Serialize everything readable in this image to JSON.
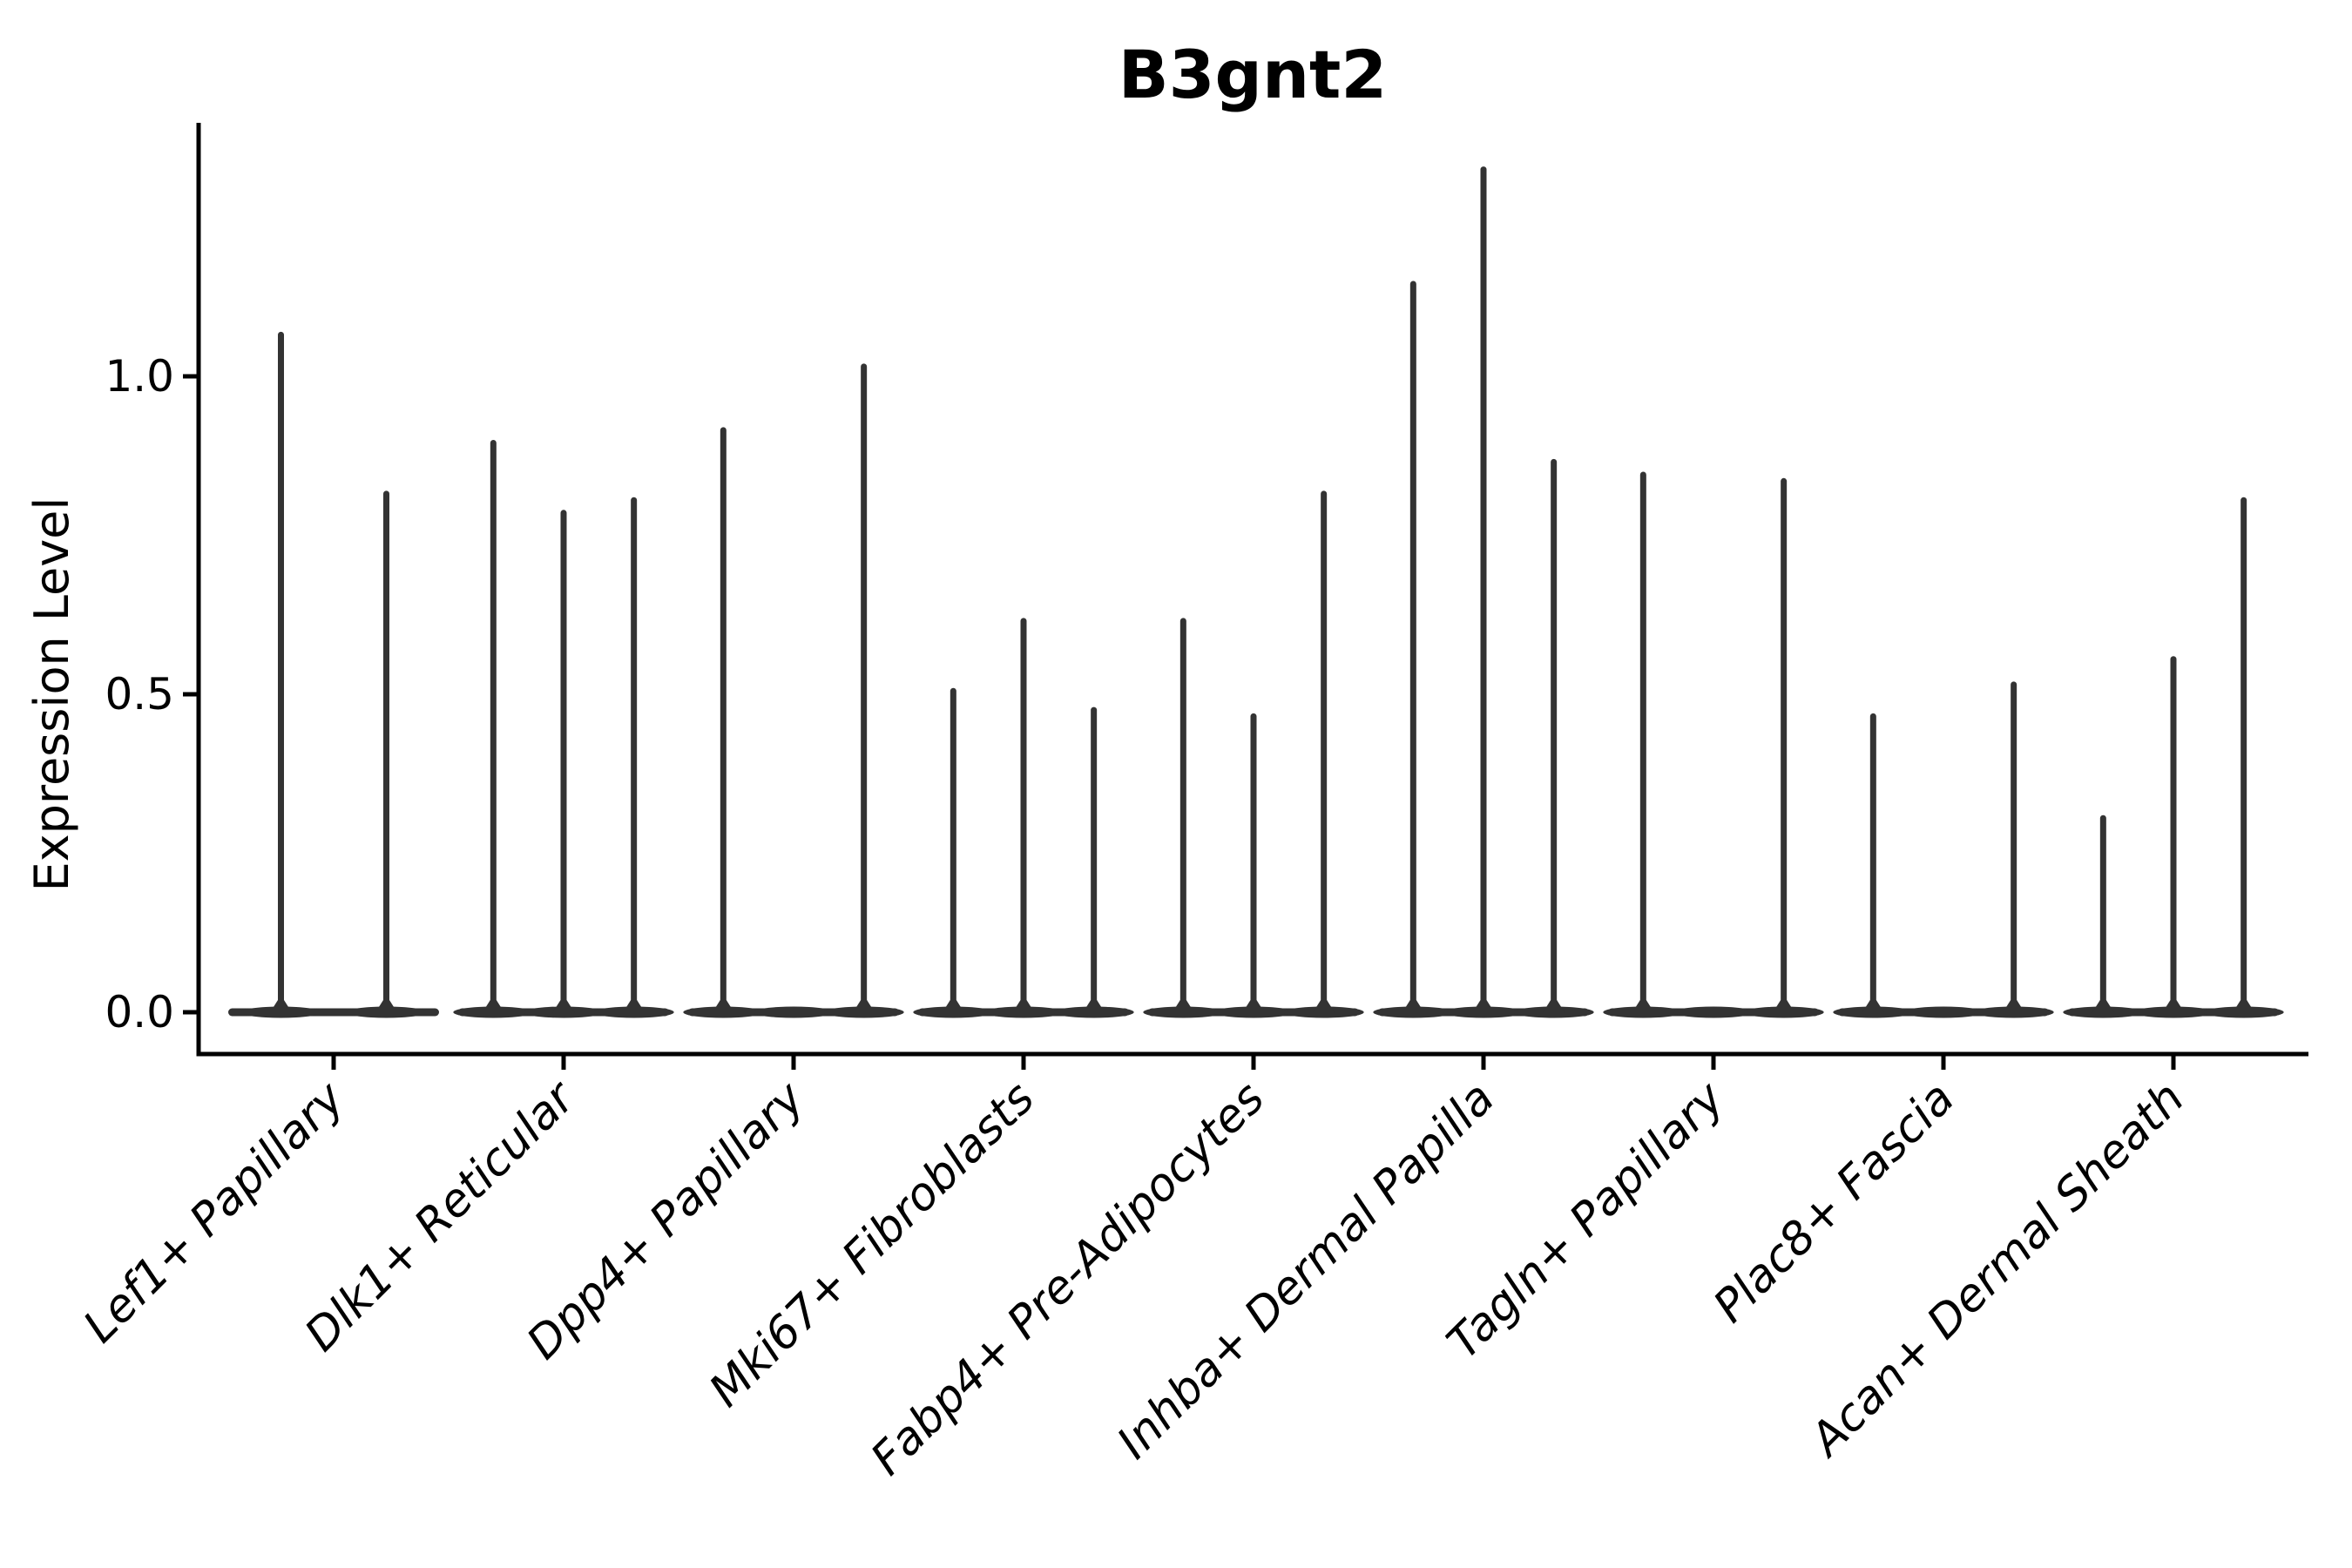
{
  "figure": {
    "background": "#ffffff"
  },
  "chart_data": {
    "type": "violin",
    "title": "B3gnt2",
    "ylabel": "Expression Level",
    "xlabel": "",
    "legend": "none",
    "grid": false,
    "ytick_labels": [
      "0.0",
      "0.5",
      "1.0"
    ],
    "ytick_values": [
      0.0,
      0.5,
      1.0
    ],
    "ylim": [
      -0.07,
      1.4
    ],
    "categories": [
      "Lef1+ Papillary",
      "Dlk1+ Reticular",
      "Dpp4+ Papillary",
      "Mki67+ Fibroblasts",
      "Fabp4+ Pre-Adipocytes",
      "Inhba+ Dermal Papilla",
      "Tagln+ Papillary",
      "Plac8+ Fascia",
      "Acan+ Dermal Sheath"
    ],
    "groups": [
      {
        "category": "Lef1+ Papillary",
        "slots": 2,
        "violins": [
          {
            "slot": 0,
            "peak": 1.07
          },
          {
            "slot": 1,
            "peak": 0.82
          }
        ]
      },
      {
        "category": "Dlk1+ Reticular",
        "slots": 3,
        "violins": [
          {
            "slot": 0,
            "peak": 0.9
          },
          {
            "slot": 1,
            "peak": 0.79
          },
          {
            "slot": 2,
            "peak": 0.81
          }
        ]
      },
      {
        "category": "Dpp4+ Papillary",
        "slots": 3,
        "violins": [
          {
            "slot": 0,
            "peak": 0.92
          },
          {
            "slot": 2,
            "peak": 1.02
          }
        ]
      },
      {
        "category": "Mki67+ Fibroblasts",
        "slots": 3,
        "violins": [
          {
            "slot": 0,
            "peak": 0.51
          },
          {
            "slot": 1,
            "peak": 0.62
          },
          {
            "slot": 2,
            "peak": 0.48
          }
        ]
      },
      {
        "category": "Fabp4+ Pre-Adipocytes",
        "slots": 3,
        "violins": [
          {
            "slot": 0,
            "peak": 0.62
          },
          {
            "slot": 1,
            "peak": 0.47
          },
          {
            "slot": 2,
            "peak": 0.82
          }
        ]
      },
      {
        "category": "Inhba+ Dermal Papilla",
        "slots": 3,
        "violins": [
          {
            "slot": 0,
            "peak": 1.15
          },
          {
            "slot": 1,
            "peak": 1.33
          },
          {
            "slot": 2,
            "peak": 0.87
          }
        ]
      },
      {
        "category": "Tagln+ Papillary",
        "slots": 3,
        "violins": [
          {
            "slot": 0,
            "peak": 0.85
          },
          {
            "slot": 2,
            "peak": 0.84
          }
        ]
      },
      {
        "category": "Plac8+ Fascia",
        "slots": 3,
        "violins": [
          {
            "slot": 0,
            "peak": 0.47
          },
          {
            "slot": 2,
            "peak": 0.52
          }
        ]
      },
      {
        "category": "Acan+ Dermal Sheath",
        "slots": 3,
        "violins": [
          {
            "slot": 0,
            "peak": 0.31
          },
          {
            "slot": 1,
            "peak": 0.56
          },
          {
            "slot": 2,
            "peak": 0.81
          }
        ]
      }
    ],
    "colors": {
      "violin": "#333333",
      "axis": "#000000",
      "text": "#000000",
      "background": "#ffffff"
    }
  }
}
